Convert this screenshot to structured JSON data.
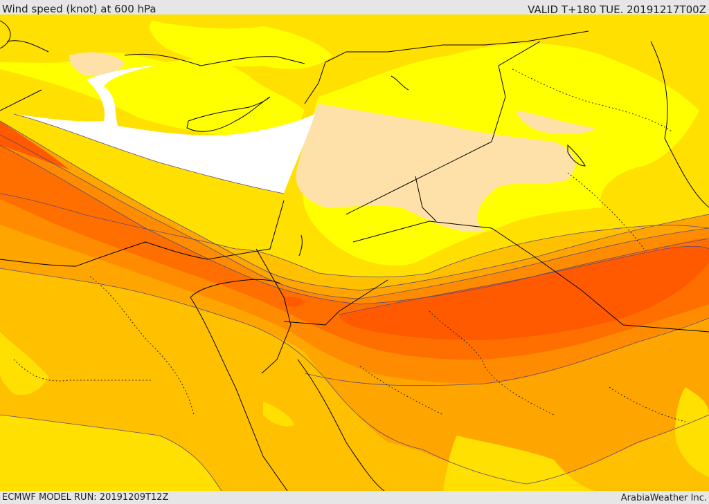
{
  "header": {
    "title": "Wind speed (knot) at 600 hPa",
    "valid": "VALID T+180 TUE. 20191217T00Z"
  },
  "footer": {
    "model_run": "ECMWF MODEL RUN: 20191209T12Z",
    "credit": "ArabiaWeather Inc."
  },
  "colors": {
    "white": "#ffffff",
    "pale": "#fde1a8",
    "yellow1": "#ffff00",
    "yellow2": "#ffe000",
    "orange1": "#ffc000",
    "orange2": "#ffa500",
    "orange3": "#ff8c00",
    "orange4": "#ff6f00",
    "orange5": "#ff5a00"
  }
}
